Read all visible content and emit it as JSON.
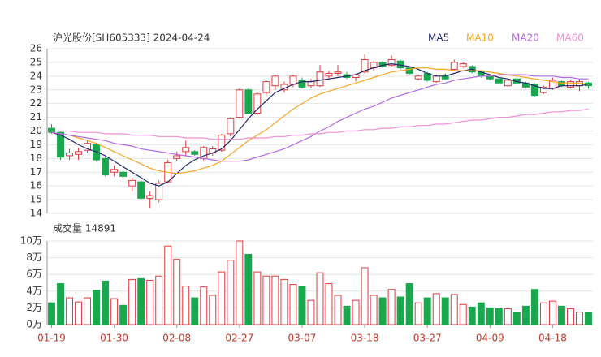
{
  "chart_data": {
    "type": "candlestick",
    "title": "沪光股份[SH605333] 2024-04-24",
    "volume_title": "成交量 14891",
    "up_color": "#e0393e",
    "down_color": "#1aa84e",
    "categories": [
      "01-19",
      null,
      null,
      null,
      null,
      null,
      null,
      "01-30",
      null,
      null,
      null,
      null,
      null,
      null,
      "02-08",
      null,
      null,
      null,
      null,
      null,
      null,
      "02-27",
      null,
      null,
      null,
      null,
      null,
      null,
      "03-07",
      null,
      null,
      null,
      null,
      null,
      null,
      "03-18",
      null,
      null,
      null,
      null,
      null,
      null,
      "03-27",
      null,
      null,
      null,
      null,
      null,
      null,
      "04-09",
      null,
      null,
      null,
      null,
      null,
      null,
      "04-18",
      null,
      null,
      null,
      null
    ],
    "open": [
      20.2,
      19.9,
      18.2,
      18.3,
      18.6,
      19.0,
      18.0,
      17.0,
      17.0,
      16.0,
      16.3,
      15.1,
      15.0,
      16.3,
      18.0,
      18.5,
      18.5,
      18.0,
      18.4,
      18.6,
      19.8,
      21.0,
      23.0,
      21.3,
      22.8,
      23.3,
      23.0,
      23.4,
      23.7,
      23.3,
      23.3,
      24.0,
      24.2,
      24.1,
      23.9,
      24.3,
      24.6,
      25.0,
      24.8,
      25.1,
      24.6,
      23.8,
      24.2,
      23.6,
      24.0,
      24.5,
      24.7,
      24.7,
      24.3,
      24.0,
      23.8,
      23.3,
      23.8,
      23.5,
      23.4,
      22.8,
      23.1,
      23.6,
      23.2,
      23.3,
      23.5
    ],
    "high": [
      20.5,
      20.0,
      18.7,
      18.8,
      19.3,
      19.1,
      18.1,
      17.5,
      17.1,
      16.6,
      16.4,
      15.6,
      16.4,
      17.9,
      18.5,
      19.3,
      18.6,
      18.9,
      18.9,
      19.8,
      21.0,
      23.1,
      23.1,
      22.8,
      23.7,
      24.1,
      23.6,
      24.1,
      23.9,
      23.8,
      24.8,
      24.4,
      24.8,
      24.3,
      24.2,
      25.6,
      25.1,
      25.1,
      25.5,
      25.2,
      24.7,
      24.1,
      24.3,
      24.1,
      24.2,
      25.2,
      25.0,
      24.8,
      24.4,
      24.1,
      23.9,
      23.8,
      23.9,
      23.6,
      23.5,
      23.3,
      23.9,
      23.7,
      23.7,
      23.8,
      23.6
    ],
    "low": [
      19.8,
      17.9,
      17.9,
      17.9,
      18.4,
      17.8,
      16.7,
      16.7,
      16.6,
      15.6,
      15.0,
      14.4,
      14.8,
      16.2,
      17.8,
      18.2,
      18.2,
      17.8,
      18.2,
      18.5,
      19.6,
      20.9,
      21.2,
      21.2,
      22.6,
      23.0,
      22.8,
      23.2,
      23.1,
      23.1,
      23.2,
      23.8,
      24.0,
      23.8,
      23.6,
      24.2,
      24.4,
      24.6,
      24.7,
      24.5,
      24.1,
      23.7,
      23.6,
      23.5,
      23.7,
      24.4,
      24.6,
      24.2,
      23.9,
      23.7,
      23.4,
      23.2,
      23.4,
      23.1,
      22.5,
      22.7,
      23.0,
      23.2,
      23.1,
      22.9,
      23.1
    ],
    "close": [
      19.9,
      18.1,
      18.4,
      18.5,
      19.1,
      17.9,
      16.8,
      17.2,
      16.7,
      16.4,
      15.1,
      15.3,
      16.2,
      17.7,
      18.2,
      18.8,
      18.3,
      18.8,
      18.7,
      19.7,
      20.9,
      23.0,
      21.3,
      22.7,
      23.6,
      24.0,
      23.4,
      24.0,
      23.2,
      23.6,
      24.3,
      24.2,
      24.3,
      23.9,
      24.1,
      25.2,
      25.0,
      24.7,
      25.2,
      24.6,
      24.2,
      24.0,
      23.7,
      24.0,
      23.8,
      25.0,
      24.9,
      24.3,
      24.0,
      23.8,
      23.5,
      23.7,
      23.5,
      23.2,
      22.6,
      23.2,
      23.7,
      23.3,
      23.6,
      23.6,
      23.3
    ],
    "volume": [
      2.6,
      4.9,
      3.2,
      2.7,
      3.2,
      4.1,
      5.2,
      3.1,
      2.3,
      5.4,
      5.5,
      5.3,
      5.8,
      9.4,
      7.8,
      4.6,
      3.2,
      4.5,
      3.5,
      6.3,
      7.7,
      10.0,
      8.4,
      6.3,
      5.8,
      5.8,
      5.4,
      4.8,
      4.6,
      2.9,
      6.2,
      4.9,
      3.5,
      2.2,
      2.9,
      6.8,
      3.5,
      3.2,
      4.2,
      3.3,
      4.9,
      2.6,
      3.2,
      3.7,
      3.2,
      3.6,
      2.4,
      2.1,
      2.6,
      2.0,
      1.9,
      1.9,
      1.5,
      2.2,
      4.2,
      2.6,
      2.8,
      2.2,
      1.9,
      1.5,
      1.4891
    ],
    "series": [
      {
        "name": "MA5",
        "color": "#22296b",
        "values": [
          19.9,
          19.7,
          19.4,
          19.0,
          18.7,
          18.5,
          18.2,
          17.8,
          17.4,
          17.0,
          16.6,
          16.2,
          16.0,
          16.3,
          16.9,
          17.5,
          17.9,
          18.2,
          18.4,
          18.7,
          19.3,
          20.1,
          20.9,
          21.6,
          22.2,
          22.8,
          23.1,
          23.4,
          23.6,
          23.6,
          23.7,
          23.8,
          23.9,
          24.0,
          24.1,
          24.4,
          24.6,
          24.8,
          24.9,
          24.8,
          24.7,
          24.5,
          24.2,
          24.0,
          24.0,
          24.2,
          24.4,
          24.5,
          24.3,
          24.1,
          23.9,
          23.8,
          23.6,
          23.5,
          23.3,
          23.1,
          23.1,
          23.3,
          23.3,
          23.3,
          23.4
        ]
      },
      {
        "name": "MA10",
        "color": "#f5a623",
        "values": [
          19.9,
          19.8,
          19.7,
          19.5,
          19.3,
          19.1,
          18.8,
          18.5,
          18.2,
          17.9,
          17.6,
          17.3,
          17.1,
          17.0,
          16.9,
          17.0,
          17.1,
          17.3,
          17.5,
          17.8,
          18.3,
          18.8,
          19.3,
          19.7,
          20.1,
          20.6,
          21.1,
          21.6,
          22.0,
          22.4,
          22.7,
          22.9,
          23.1,
          23.3,
          23.5,
          23.7,
          23.9,
          24.1,
          24.3,
          24.4,
          24.5,
          24.6,
          24.6,
          24.5,
          24.5,
          24.4,
          24.4,
          24.4,
          24.4,
          24.3,
          24.2,
          24.1,
          24.0,
          23.9,
          23.8,
          23.7,
          23.6,
          23.5,
          23.5,
          23.5,
          23.4
        ]
      },
      {
        "name": "MA20",
        "color": "#b36ae0",
        "values": [
          19.9,
          19.8,
          19.7,
          19.6,
          19.5,
          19.4,
          19.3,
          19.1,
          19.0,
          18.9,
          18.7,
          18.6,
          18.5,
          18.4,
          18.3,
          18.2,
          18.1,
          18.0,
          17.9,
          17.8,
          17.8,
          17.8,
          17.9,
          18.1,
          18.3,
          18.5,
          18.7,
          19.0,
          19.3,
          19.6,
          20.0,
          20.3,
          20.7,
          21.0,
          21.3,
          21.6,
          21.8,
          22.1,
          22.4,
          22.6,
          22.8,
          23.0,
          23.2,
          23.4,
          23.5,
          23.7,
          23.8,
          23.9,
          24.0,
          24.0,
          24.1,
          24.1,
          24.1,
          24.1,
          24.0,
          24.0,
          24.0,
          23.9,
          23.9,
          23.8,
          23.8
        ]
      },
      {
        "name": "MA60",
        "color": "#ee8fd4",
        "values": [
          20.0,
          20.0,
          20.0,
          19.9,
          19.9,
          19.9,
          19.8,
          19.8,
          19.8,
          19.7,
          19.7,
          19.7,
          19.6,
          19.6,
          19.6,
          19.5,
          19.5,
          19.5,
          19.4,
          19.4,
          19.4,
          19.4,
          19.5,
          19.5,
          19.5,
          19.6,
          19.6,
          19.7,
          19.7,
          19.8,
          19.8,
          19.9,
          19.9,
          20.0,
          20.0,
          20.1,
          20.1,
          20.2,
          20.2,
          20.3,
          20.3,
          20.4,
          20.4,
          20.5,
          20.5,
          20.6,
          20.7,
          20.8,
          20.8,
          20.9,
          21.0,
          21.0,
          21.1,
          21.2,
          21.2,
          21.3,
          21.4,
          21.4,
          21.5,
          21.5,
          21.6
        ]
      }
    ],
    "ylim": [
      14,
      26
    ],
    "yticks": [
      14,
      15,
      16,
      17,
      18,
      19,
      20,
      21,
      22,
      23,
      24,
      25,
      26
    ],
    "y2lim": [
      0,
      10
    ],
    "y2ticks": [
      {
        "value": 0,
        "label": "0万"
      },
      {
        "value": 2,
        "label": "2万"
      },
      {
        "value": 4,
        "label": "4万"
      },
      {
        "value": 6,
        "label": "6万"
      },
      {
        "value": 8,
        "label": "8万"
      },
      {
        "value": 10,
        "label": "10万"
      }
    ],
    "grid": true
  }
}
